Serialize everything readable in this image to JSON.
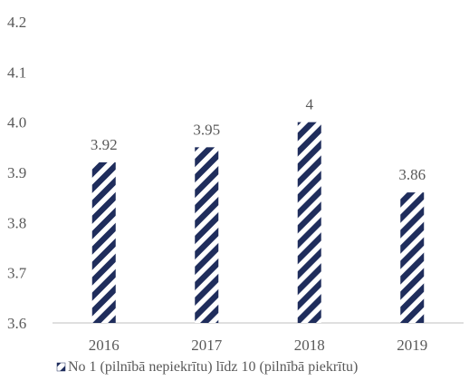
{
  "chart_data": {
    "type": "bar",
    "categories": [
      "2016",
      "2017",
      "2018",
      "2019"
    ],
    "series": [
      {
        "name": "No 1 (pilnībā nepiekrītu) līdz 10 (pilnībā piekrītu)",
        "values": [
          3.92,
          3.95,
          4,
          3.86
        ],
        "labels": [
          "3.92",
          "3.95",
          "4",
          "3.86"
        ]
      }
    ],
    "yticks": [
      "3.6",
      "3.7",
      "3.8",
      "3.9",
      "4.0",
      "4.1",
      "4.2"
    ],
    "ylim": [
      3.6,
      4.2
    ],
    "grid": false,
    "legend": "bottom",
    "bar_pattern": "diagonal-stripes",
    "colors": {
      "bar": "#1f2d5c",
      "axis": "#bfbfbf",
      "text": "#595959"
    }
  }
}
